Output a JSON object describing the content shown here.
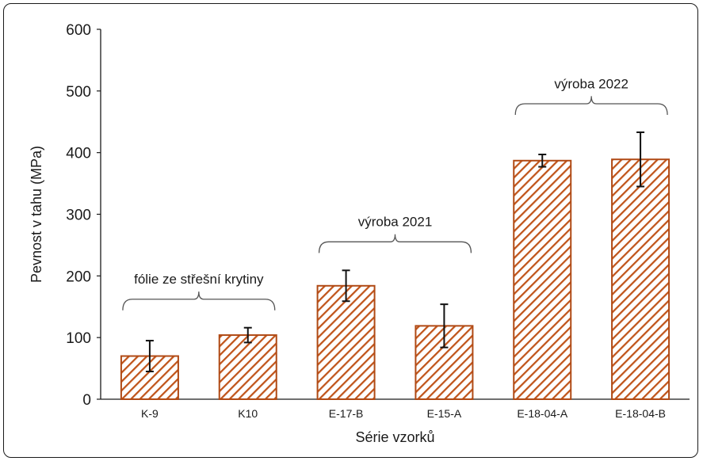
{
  "chart_data": {
    "type": "bar",
    "title": "",
    "xlabel": "Série vzorků",
    "ylabel": "Pevnost v tahu (MPa)",
    "ylim": [
      0,
      600
    ],
    "yticks": [
      0,
      100,
      200,
      300,
      400,
      500,
      600
    ],
    "categories": [
      "K-9",
      "K10",
      "E-17-B",
      "E-15-A",
      "E-18-04-A",
      "E-18-04-B"
    ],
    "values": [
      70,
      104,
      184,
      119,
      387,
      389
    ],
    "errors": [
      25,
      12,
      25,
      35,
      10,
      44
    ],
    "grid": false,
    "legend": "none",
    "bar_fill": "hatched",
    "bar_color": "#c0541a",
    "groups": [
      {
        "label": "fólie ze střešní krytiny",
        "start": 0,
        "end": 1
      },
      {
        "label": "výroba 2021",
        "start": 2,
        "end": 3
      },
      {
        "label": "výroba 2022",
        "start": 4,
        "end": 5
      }
    ]
  }
}
